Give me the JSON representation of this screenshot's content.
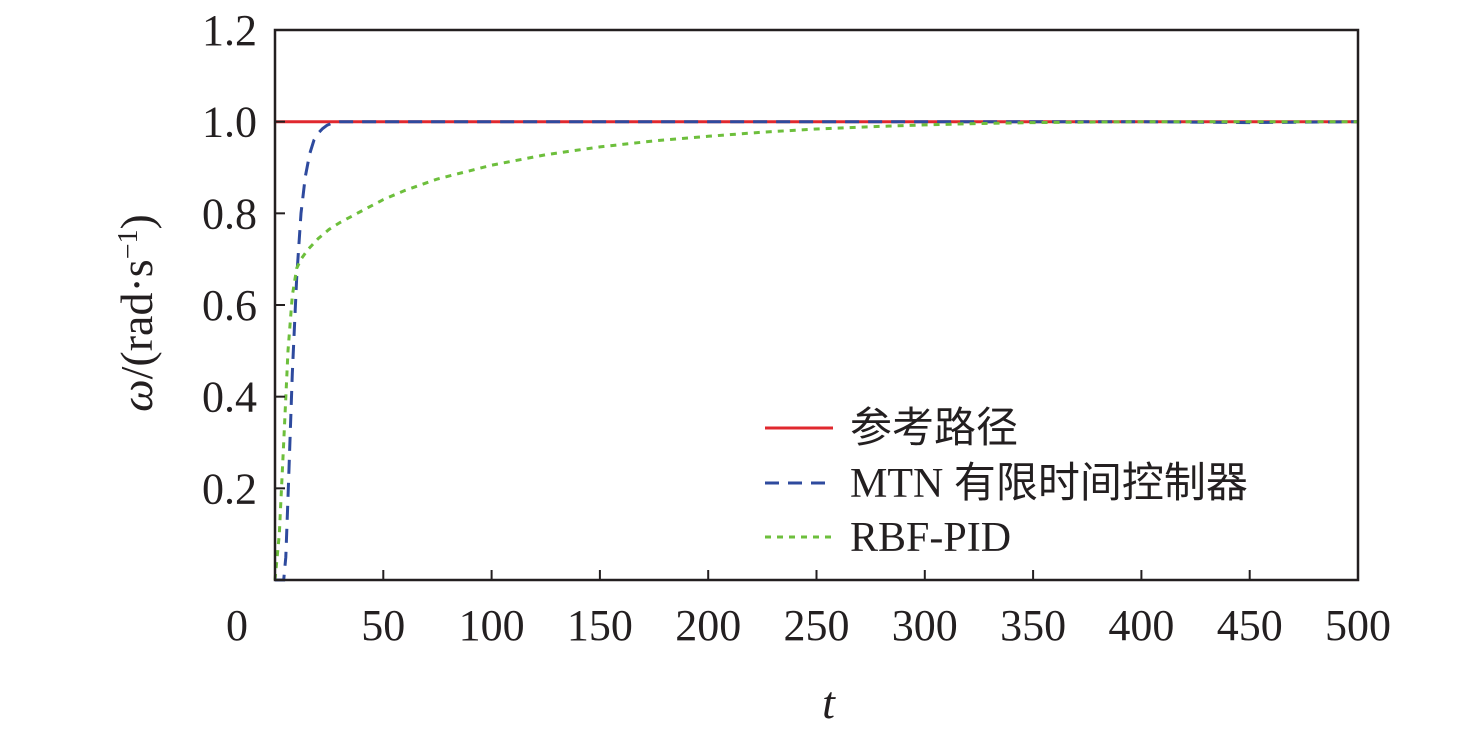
{
  "chart_data": {
    "type": "line",
    "title": "",
    "xlabel": "t",
    "ylabel": "ω/(rad·s⁻¹)",
    "ylabel_parts": {
      "symbol": "ω",
      "unit_open": "/(rad·s",
      "exponent": "−1",
      "unit_close": ")"
    },
    "xlim": [
      0,
      500
    ],
    "ylim": [
      0,
      1.2
    ],
    "x_ticks": [
      0,
      50,
      100,
      150,
      200,
      250,
      300,
      350,
      400,
      450,
      500
    ],
    "x_tick_labels": [
      "0",
      "50",
      "100",
      "150",
      "200",
      "250",
      "300",
      "350",
      "400",
      "450",
      "500"
    ],
    "y_ticks": [
      0.2,
      0.4,
      0.6,
      0.8,
      1.0,
      1.2
    ],
    "y_tick_labels": [
      "0.2",
      "0.4",
      "0.6",
      "0.8",
      "1.0",
      "1.2"
    ],
    "grid": false,
    "legend_position": "bottom-right",
    "series": [
      {
        "name": "参考路径",
        "color": "#e0282e",
        "style": "solid",
        "x": [
          0,
          500
        ],
        "y": [
          1.0,
          1.0
        ]
      },
      {
        "name": "MTN 有限时间控制器",
        "color": "#2e4a9e",
        "style": "dashed",
        "x": [
          0,
          2,
          4,
          5,
          6,
          8,
          10,
          12,
          14,
          16,
          18,
          20,
          22,
          24,
          26,
          28,
          30,
          35,
          40,
          60,
          100,
          150,
          200,
          250,
          300,
          350,
          400,
          450,
          500
        ],
        "y": [
          0.0,
          0.0,
          0.0,
          0.05,
          0.18,
          0.45,
          0.66,
          0.8,
          0.88,
          0.93,
          0.96,
          0.975,
          0.985,
          0.992,
          0.996,
          0.998,
          1.0,
          1.0,
          1.0,
          1.0,
          1.0,
          1.0,
          1.0,
          1.0,
          1.0,
          1.0,
          1.0,
          0.998,
          1.0
        ]
      },
      {
        "name": "RBF-PID",
        "color": "#6dbf3c",
        "style": "dotted",
        "x": [
          0,
          2,
          4,
          6,
          8,
          10,
          12,
          15,
          20,
          25,
          30,
          40,
          50,
          60,
          75,
          100,
          125,
          150,
          175,
          200,
          225,
          250,
          275,
          300,
          325,
          350,
          375,
          400,
          450,
          500
        ],
        "y": [
          0.0,
          0.1,
          0.3,
          0.5,
          0.62,
          0.68,
          0.7,
          0.72,
          0.745,
          0.765,
          0.78,
          0.805,
          0.83,
          0.85,
          0.875,
          0.905,
          0.928,
          0.945,
          0.958,
          0.968,
          0.977,
          0.984,
          0.989,
          0.993,
          0.996,
          0.998,
          0.999,
          1.0,
          1.0,
          1.0
        ]
      }
    ]
  }
}
